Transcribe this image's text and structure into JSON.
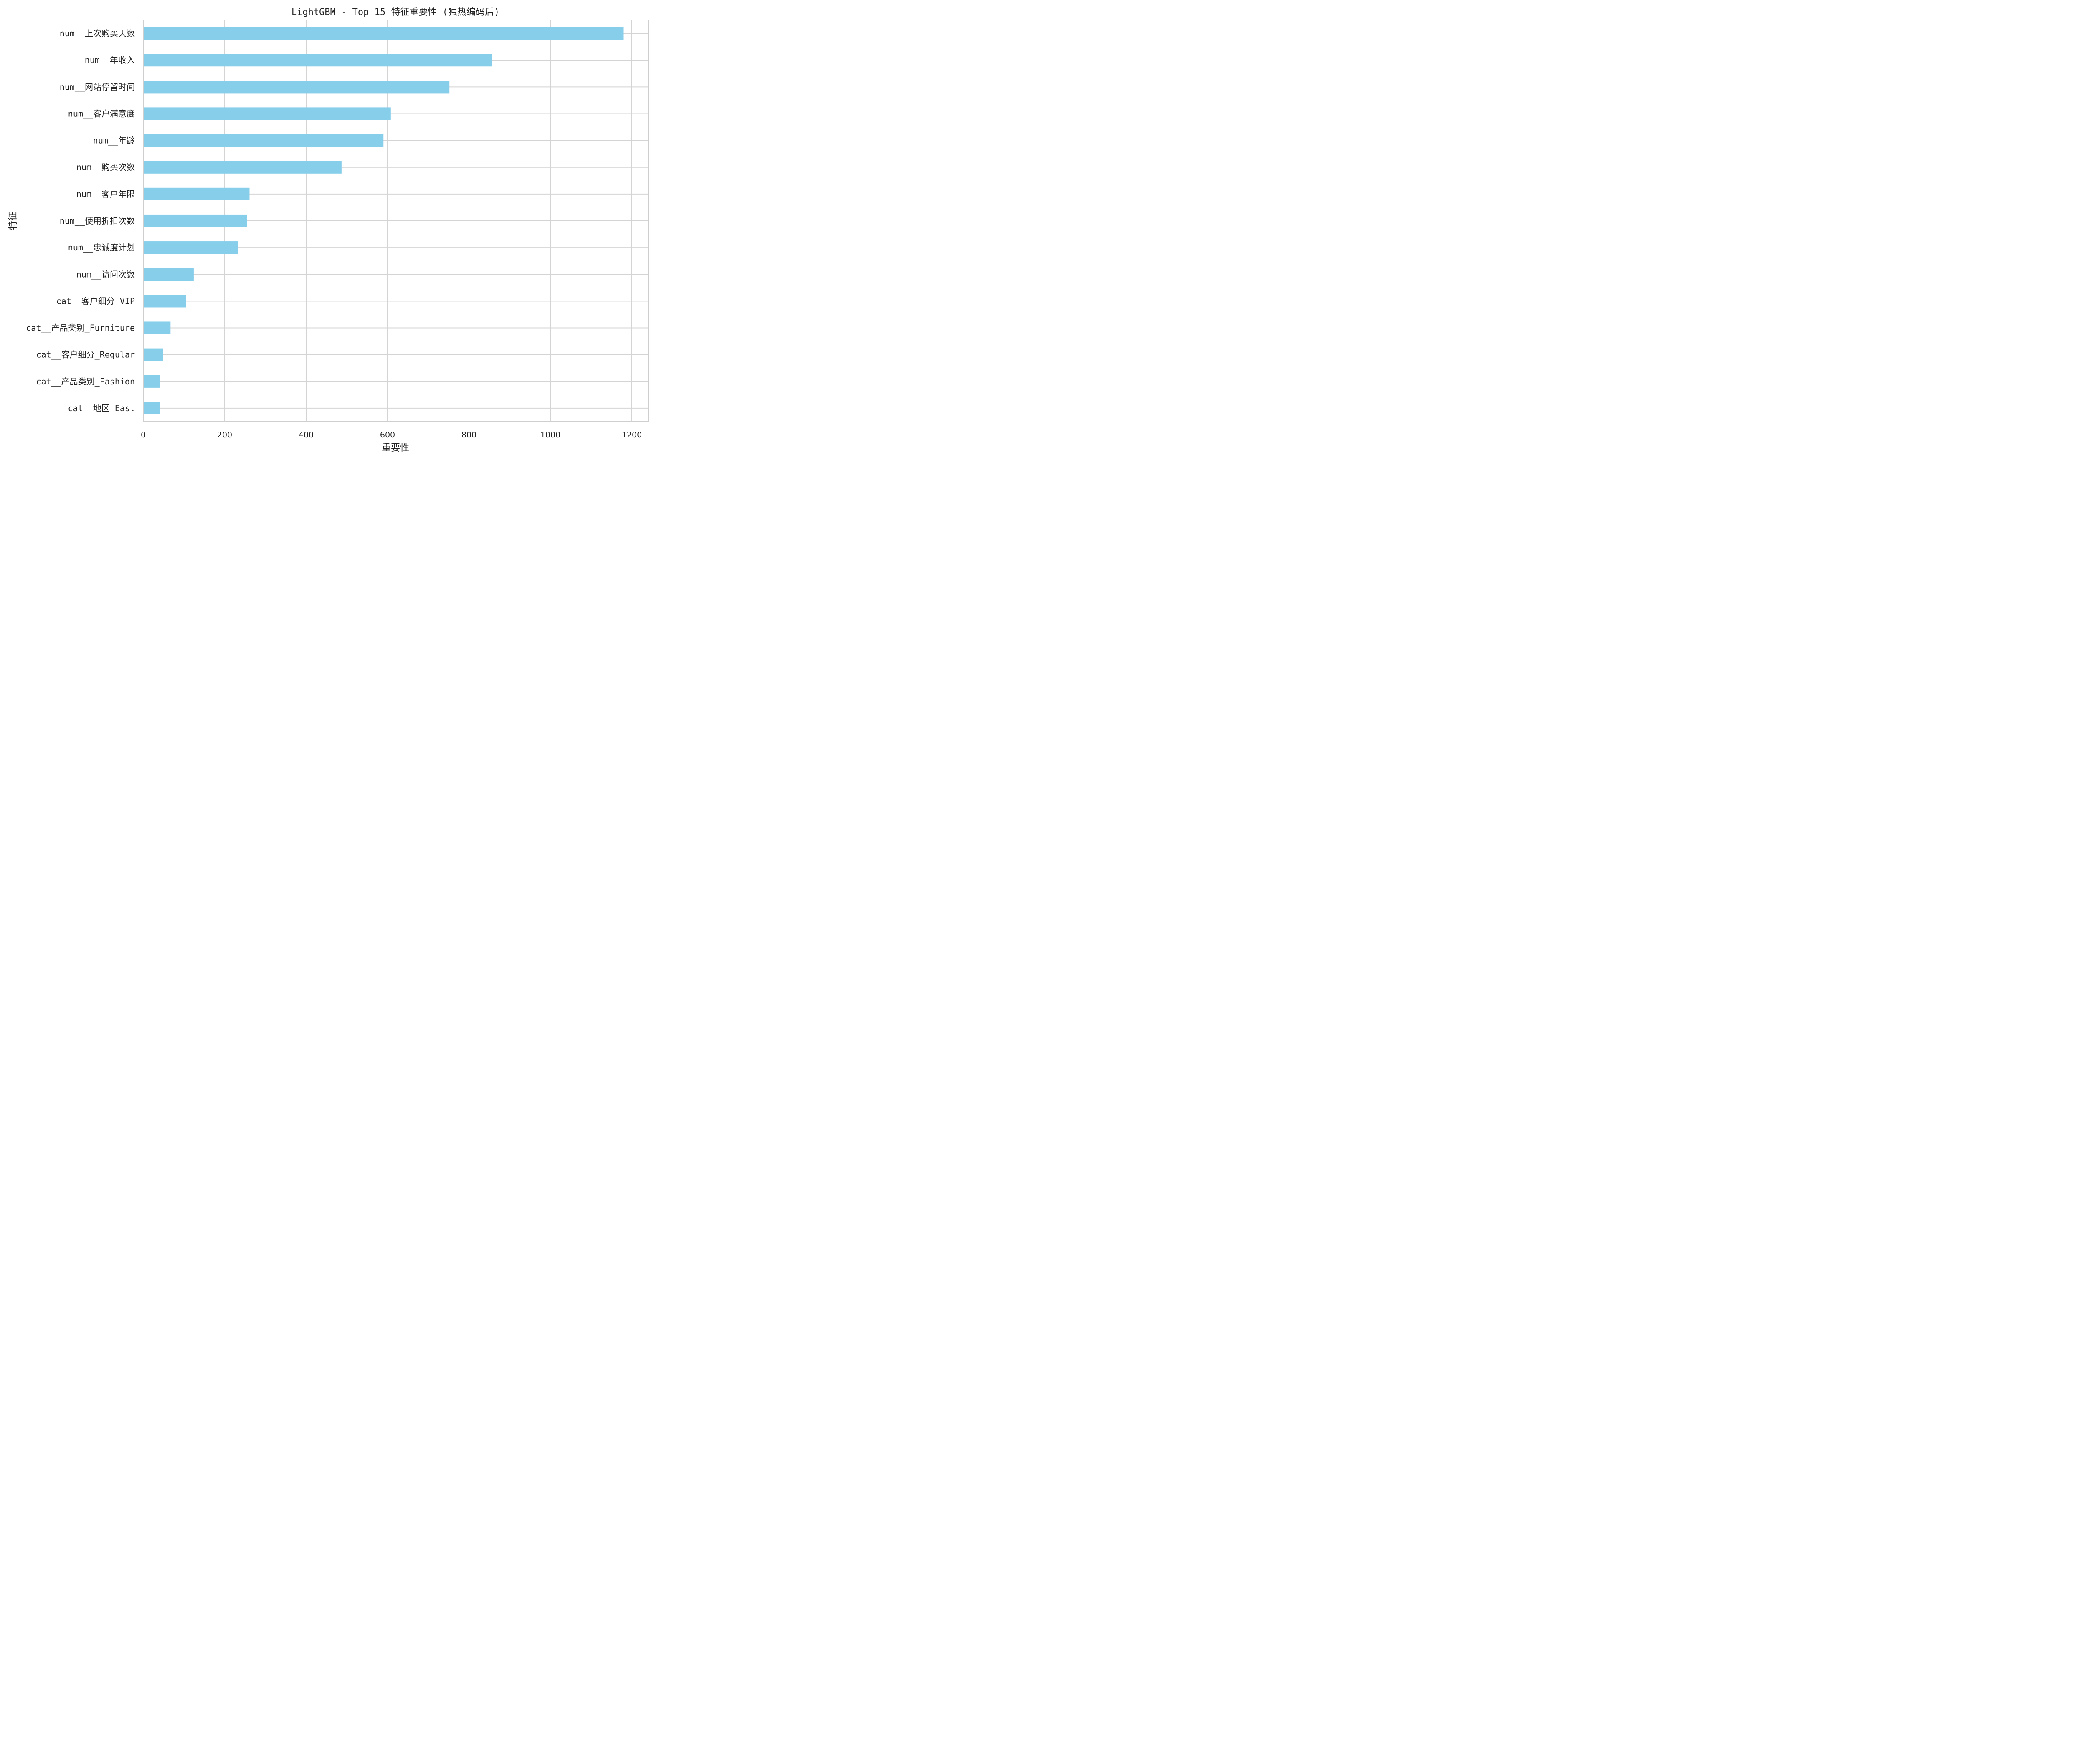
{
  "chart_data": {
    "type": "bar",
    "orientation": "horizontal",
    "title": "LightGBM - Top 15 特征重要性 (独热编码后)",
    "xlabel": "重要性",
    "ylabel": "特征",
    "xlim": [
      0,
      1240
    ],
    "xticks": [
      0,
      200,
      400,
      600,
      800,
      1000,
      1200
    ],
    "grid": true,
    "bar_color": "#87CEEB",
    "categories": [
      "num__上次购买天数",
      "num__年收入",
      "num__网站停留时间",
      "num__客户满意度",
      "num__年龄",
      "num__购买次数",
      "num__客户年限",
      "num__使用折扣次数",
      "num__忠诚度计划",
      "num__访问次数",
      "cat__客户细分_VIP",
      "cat__产品类别_Furniture",
      "cat__客户细分_Regular",
      "cat__产品类别_Fashion",
      "cat__地区_East"
    ],
    "values": [
      1180,
      857,
      752,
      608,
      590,
      487,
      261,
      255,
      232,
      124,
      105,
      67,
      49,
      42,
      40
    ]
  }
}
